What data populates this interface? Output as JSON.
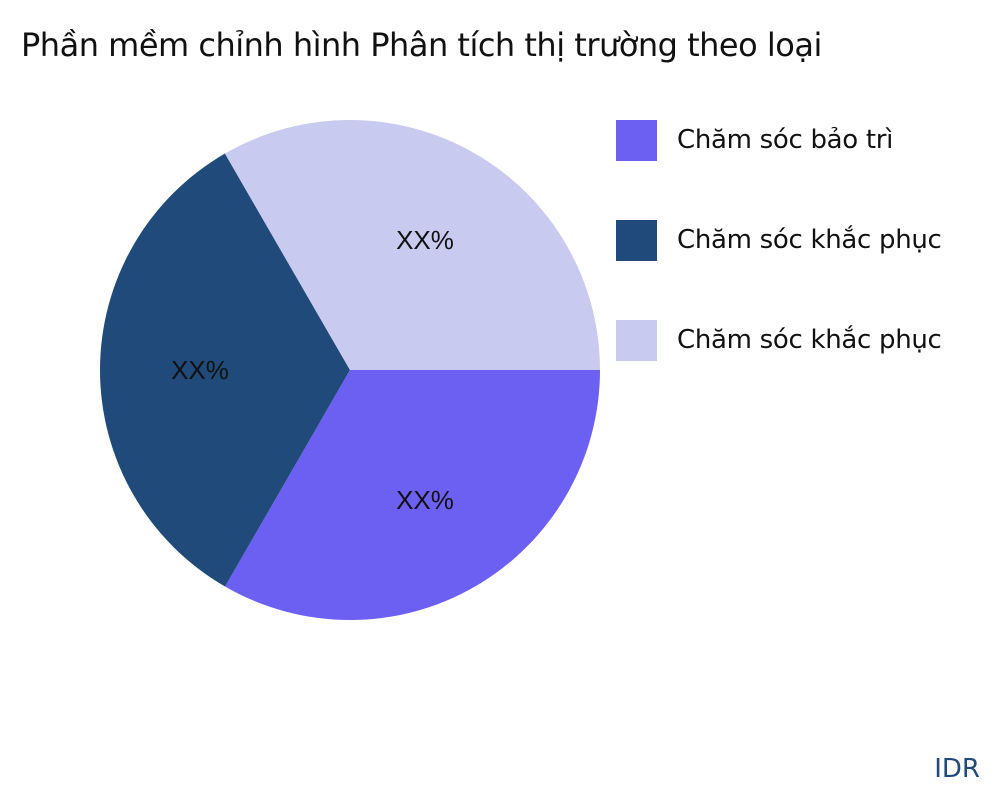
{
  "chart_data": {
    "type": "pie",
    "title": "Phần mềm chỉnh hình Phân tích thị trường theo loại",
    "slices": [
      {
        "name": "Chăm sóc bảo trì",
        "value": 33.33,
        "label": "XX%",
        "color": "#6c60f2"
      },
      {
        "name": "Chăm sóc khắc phục",
        "value": 33.33,
        "label": "XX%",
        "color": "#1f4a7a"
      },
      {
        "name": "Chăm sóc khắc phục",
        "value": 33.34,
        "label": "XX%",
        "color": "#c9caf0"
      }
    ],
    "legend_position": "right"
  },
  "source": "IDR"
}
